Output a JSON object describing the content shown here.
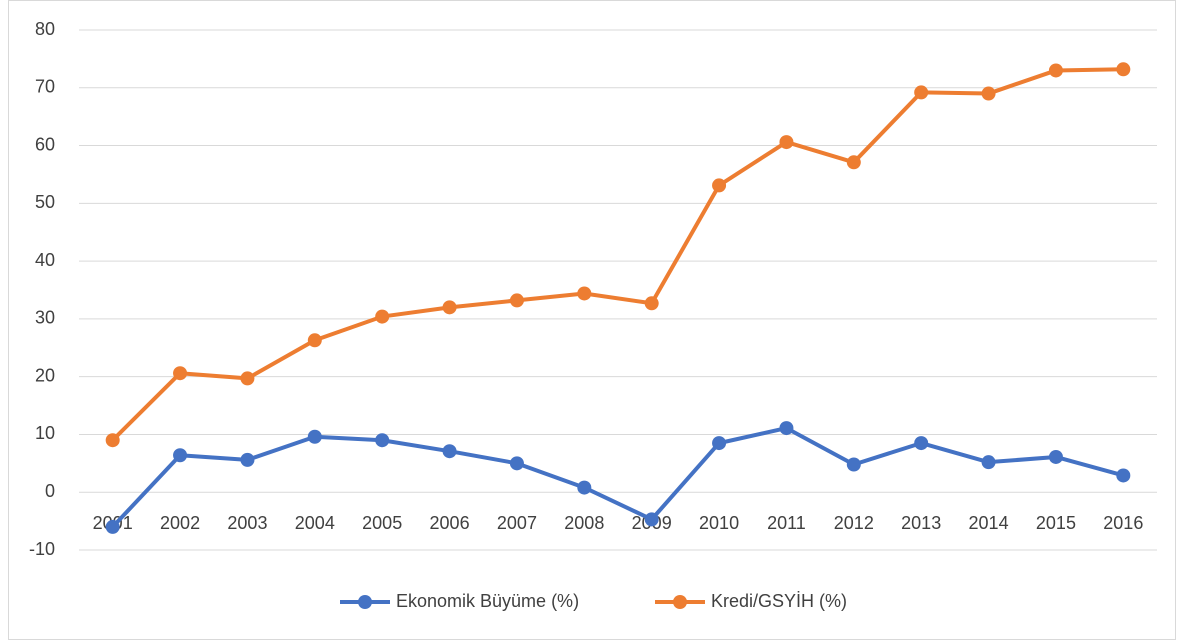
{
  "chart_data": {
    "type": "line",
    "categories": [
      "2001",
      "2002",
      "2003",
      "2004",
      "2005",
      "2006",
      "2007",
      "2008",
      "2009",
      "2010",
      "2011",
      "2012",
      "2013",
      "2014",
      "2015",
      "2016"
    ],
    "series": [
      {
        "name": "Ekonomik Büyüme (%)",
        "color": "#4472c4",
        "values": [
          -6.0,
          6.4,
          5.6,
          9.6,
          9.0,
          7.1,
          5.0,
          0.8,
          -4.7,
          8.5,
          11.1,
          4.8,
          8.5,
          5.2,
          6.1,
          2.9
        ]
      },
      {
        "name": "Kredi/GSYİH (%)",
        "color": "#ed7d31",
        "values": [
          9.0,
          20.6,
          19.7,
          26.3,
          30.4,
          32.0,
          33.2,
          34.4,
          32.7,
          53.1,
          60.6,
          57.1,
          69.2,
          69.0,
          73.0,
          73.2
        ]
      }
    ],
    "ylim": [
      -10,
      80
    ],
    "yticks": [
      -10,
      0,
      10,
      20,
      30,
      40,
      50,
      60,
      70,
      80
    ],
    "grid": true,
    "legend": "bottom"
  }
}
